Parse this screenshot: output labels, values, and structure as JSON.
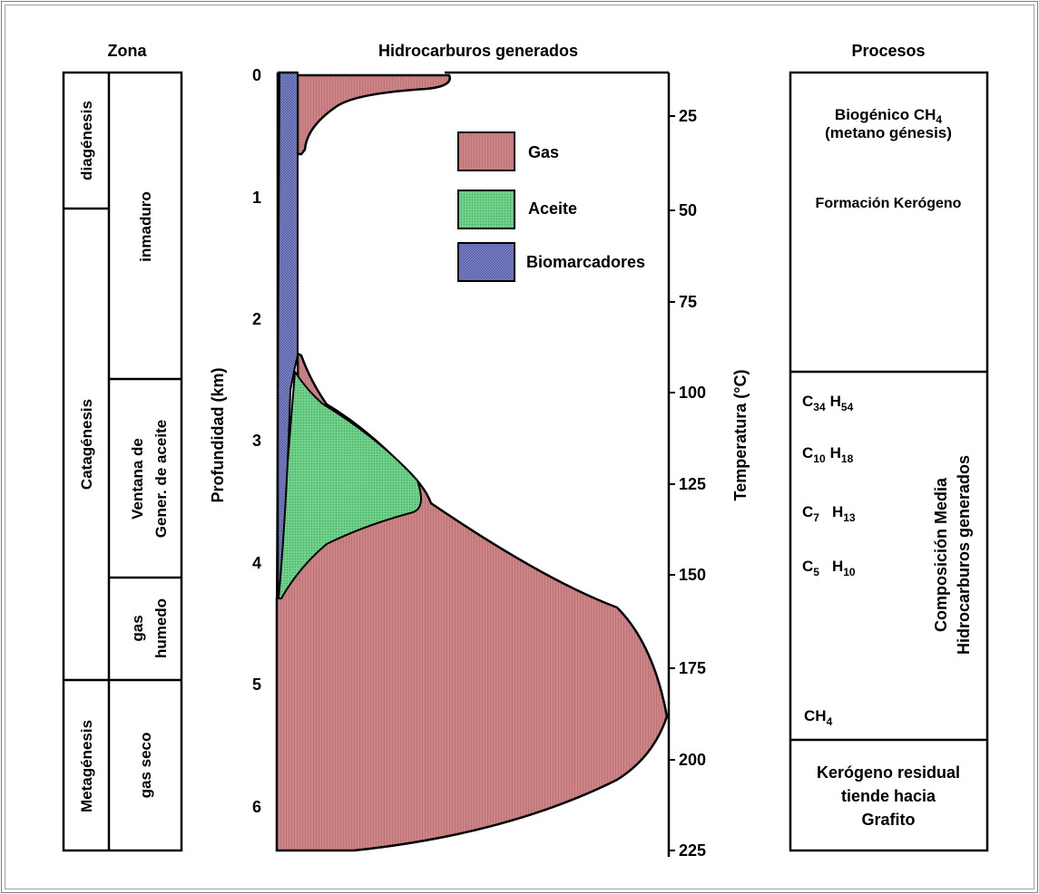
{
  "headers": {
    "zona": "Zona",
    "hidrocarburos": "Hidrocarburos generados",
    "procesos": "Procesos"
  },
  "zona": {
    "diagenesis": "diagénesis",
    "catagenesis": "Catagénesis",
    "metagenesis": "Metagénesis",
    "inmaduro": "inmaduro",
    "ventana_line1": "Ventana de",
    "ventana_line2": "Gener. de aceite",
    "gas_humedo_line1": "gas",
    "gas_humedo_line2": "humedo",
    "gas_seco": "gas  seco"
  },
  "axes": {
    "depth_label": "Profundidad  (km)",
    "temp_label": "Temperatura (°C)",
    "depth_ticks": [
      "0",
      "1",
      "2",
      "3",
      "4",
      "5",
      "6"
    ],
    "temp_ticks": [
      "25",
      "50",
      "75",
      "100",
      "125",
      "150",
      "175",
      "200",
      "225"
    ]
  },
  "legend": {
    "gas": "Gas",
    "aceite": "Aceite",
    "biomarcadores": "Biomarcadores"
  },
  "colors": {
    "gas": "#c87c7e",
    "aceite": "#66cc80",
    "biomarcadores": "#7078b8"
  },
  "procesos": {
    "biogenico": "Biogénico CH",
    "biogenico_sub": "4",
    "metano": "(metano génesis)",
    "formacion": "Formación Kerógeno",
    "composicion_line1": "Composición Media",
    "composicion_line2": "Hidrocarburos generados",
    "f1_c": "C",
    "f1_csub": "34",
    "f1_h": "H",
    "f1_hsub": "54",
    "f2_c": "C",
    "f2_csub": "10",
    "f2_h": "H",
    "f2_hsub": "18",
    "f3_c": "C",
    "f3_csub": "7",
    "f3_h": "H",
    "f3_hsub": "13",
    "f4_c": "C",
    "f4_csub": "5",
    "f4_h": "H",
    "f4_hsub": "10",
    "ch4": "CH",
    "ch4_sub": "4",
    "residual_line1": "Kerógeno residual",
    "residual_line2": "tiende hacia",
    "residual_line3": "Grafito"
  }
}
